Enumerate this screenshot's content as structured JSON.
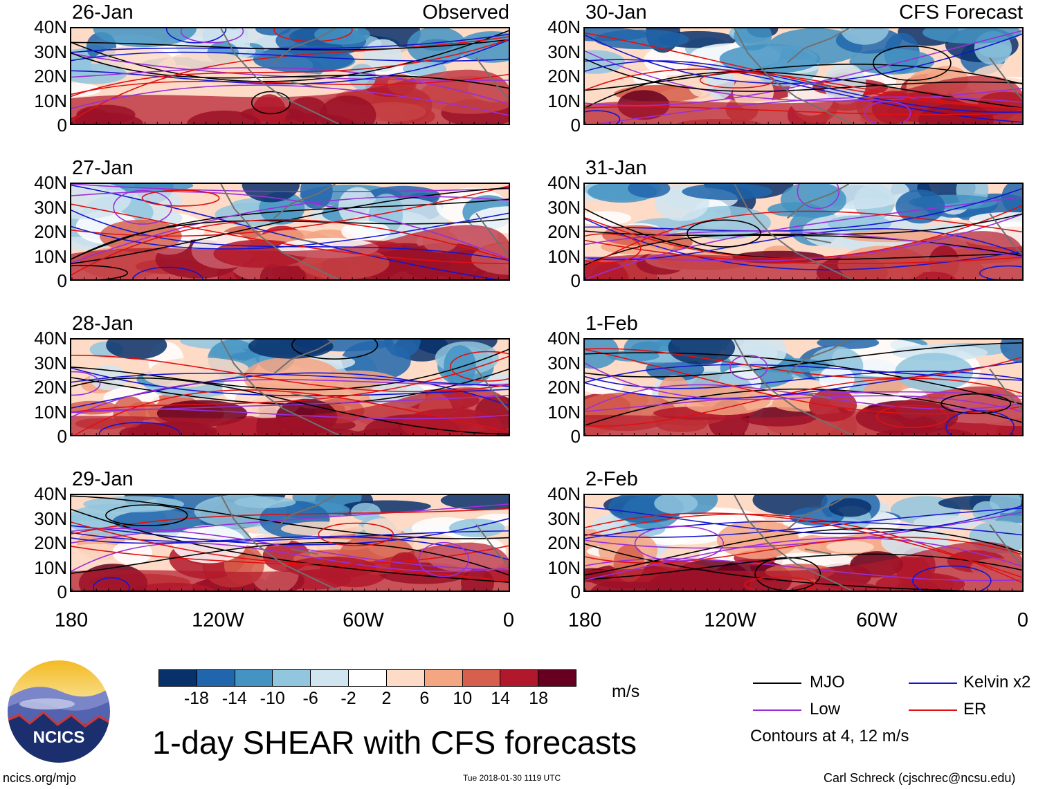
{
  "colors": {
    "dark_blue": "#08306b",
    "mid_blue": "#2166ac",
    "blue": "#4393c3",
    "light_blue": "#92c5de",
    "pale_blue": "#d1e5f0",
    "white": "#ffffff",
    "pale_red": "#fddbc7",
    "light_red": "#f4a582",
    "red": "#d6604d",
    "dark_red": "#b2182b",
    "deep_red": "#67001f",
    "mjo": "#000000",
    "kelvin": "#1515d0",
    "low": "#9a2fd8",
    "er": "#e01010",
    "coast": "#707070"
  },
  "headers": {
    "observed": "Observed",
    "forecast": "CFS Forecast"
  },
  "panels": [
    {
      "date": "26-Jan"
    },
    {
      "date": "27-Jan"
    },
    {
      "date": "28-Jan"
    },
    {
      "date": "29-Jan"
    },
    {
      "date": "30-Jan"
    },
    {
      "date": "31-Jan"
    },
    {
      "date": "1-Feb"
    },
    {
      "date": "2-Feb"
    }
  ],
  "y_ticks": [
    "40N",
    "30N",
    "20N",
    "10N",
    "0"
  ],
  "x_ticks": [
    "180",
    "120W",
    "60W",
    "0"
  ],
  "colorbar": {
    "labels": [
      "-18",
      "-14",
      "-10",
      "-6",
      "-2",
      "2",
      "6",
      "10",
      "14",
      "18"
    ],
    "unit": "m/s"
  },
  "legend": {
    "mjo": "MJO",
    "kelvin": "Kelvin x2",
    "low": "Low",
    "er": "ER",
    "note": "Contours at 4, 12 m/s"
  },
  "title": "1-day SHEAR with CFS forecasts",
  "logo_text": "NCICS",
  "footer": {
    "left": "ncics.org/mjo",
    "center": "Tue 2018-01-30 1119 UTC",
    "right": "Carl Schreck (cjschrec@ncsu.edu)"
  }
}
